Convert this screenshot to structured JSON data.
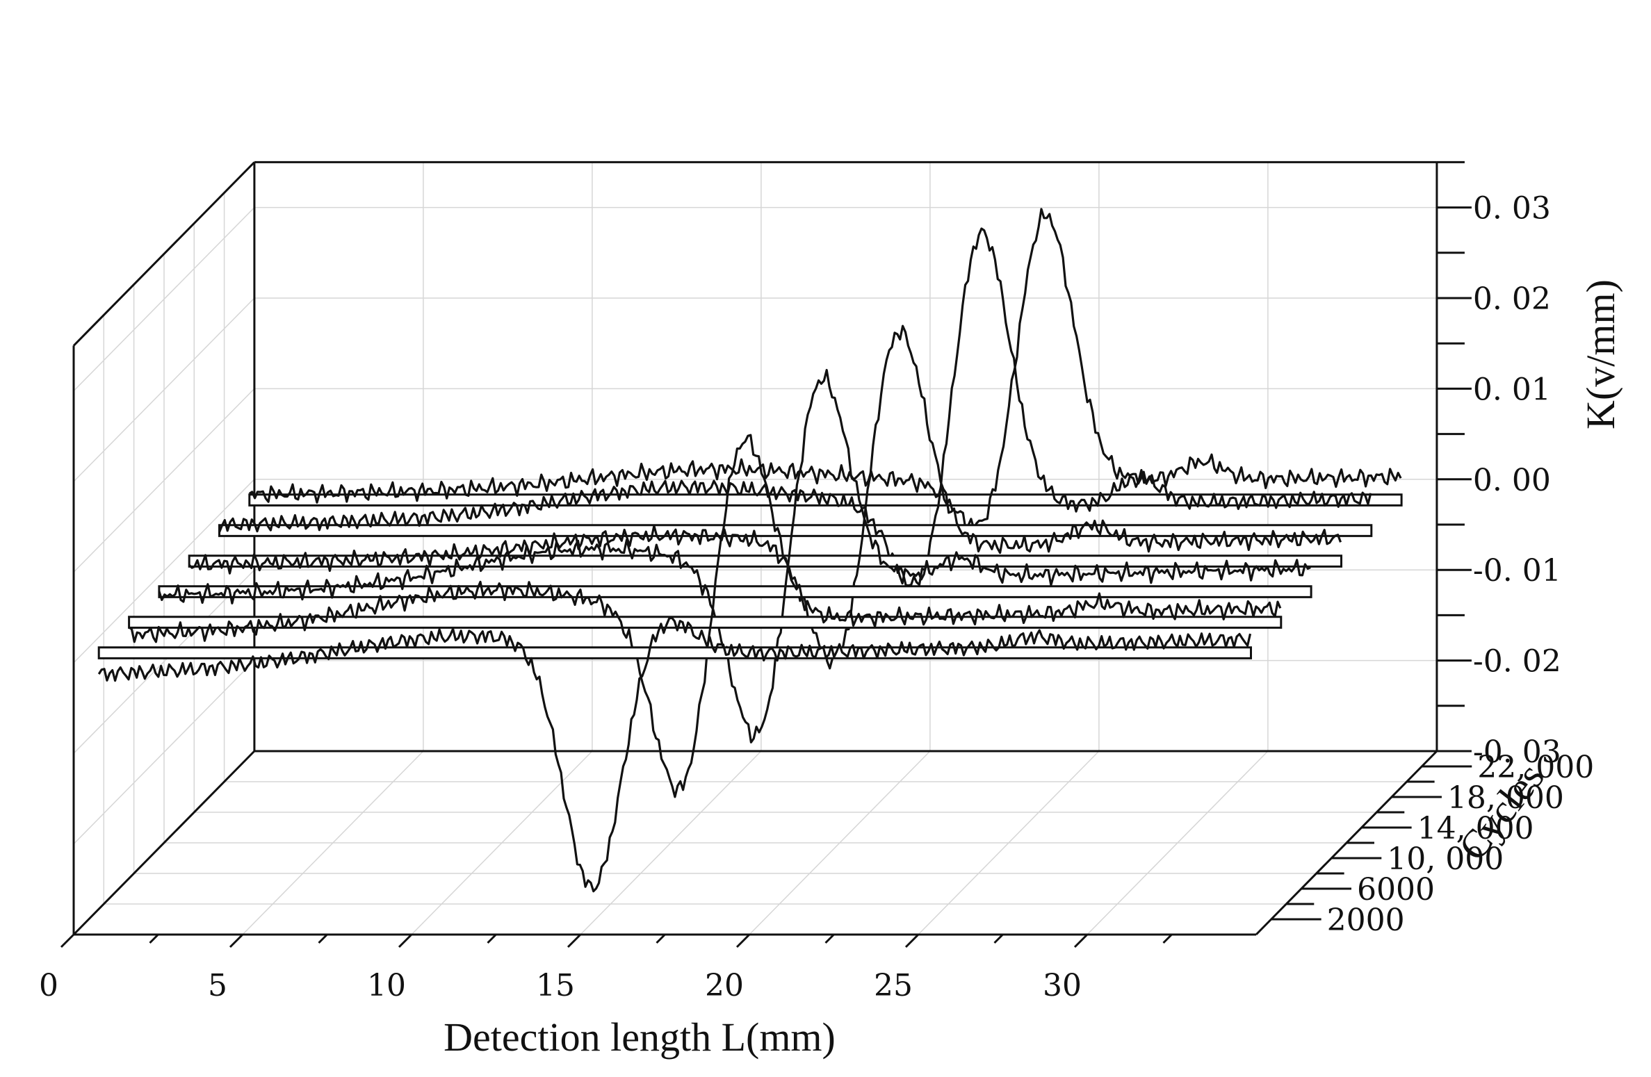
{
  "chart_data": {
    "type": "line",
    "projection": "3d-waterfall",
    "title": "",
    "xlabel": "Detection length L(mm)",
    "ylabel": "Cycles",
    "zlabel": "K(v/mm)",
    "xlim": [
      0,
      35
    ],
    "ylim": [
      0,
      24000
    ],
    "zlim": [
      -0.03,
      0.035
    ],
    "x_ticks": [
      "0",
      "5",
      "10",
      "15",
      "20",
      "25",
      "30"
    ],
    "x_tick_values": [
      0,
      5,
      10,
      15,
      20,
      25,
      30
    ],
    "y_ticks": [
      "2000",
      "6000",
      "10, 000",
      "14, 000",
      "18, 000",
      "22, 000"
    ],
    "y_tick_values": [
      2000,
      6000,
      10000,
      14000,
      18000,
      22000
    ],
    "z_ticks": [
      "-0. 03",
      "-0. 02",
      "-0. 01",
      "0. 00",
      "0. 01",
      "0. 02",
      "0. 03"
    ],
    "z_tick_values": [
      -0.03,
      -0.02,
      -0.01,
      0.0,
      0.01,
      0.02,
      0.03
    ],
    "grid": true,
    "legend": "none",
    "series": [
      {
        "name": "2000",
        "cycles": 2000,
        "base": -0.003,
        "drift": 0.004,
        "hump_center": 11,
        "hump_amp": 0.003,
        "pos_peak_center": 17,
        "pos_peak_amp": 0.004,
        "neg_peak_center": 14.9,
        "neg_peak_amp": -0.027,
        "tail_bump_center": 28,
        "tail_bump_amp": 0.001
      },
      {
        "name": "6000",
        "cycles": 6000,
        "base": -0.002,
        "drift": 0.003,
        "hump_center": 11,
        "hump_amp": 0.004,
        "pos_peak_center": 18.4,
        "pos_peak_amp": 0.022,
        "neg_peak_center": 16.7,
        "neg_peak_amp": -0.022,
        "tail_bump_center": 29,
        "tail_bump_amp": 0.001
      },
      {
        "name": "10,000",
        "cycles": 10000,
        "base": -0.001,
        "drift": 0.003,
        "hump_center": 13,
        "hump_amp": 0.004,
        "pos_peak_center": 19.8,
        "pos_peak_amp": 0.024,
        "neg_peak_center": 18.1,
        "neg_peak_amp": -0.021,
        "tail_bump_center": 24,
        "tail_bump_amp": 0.002
      },
      {
        "name": "14,000",
        "cycles": 14000,
        "base": -0.001,
        "drift": 0.003,
        "hump_center": 14,
        "hump_amp": 0.002,
        "pos_peak_center": 21.2,
        "pos_peak_amp": 0.026,
        "neg_peak_center": 19.6,
        "neg_peak_amp": -0.016,
        "tail_bump_center": 27,
        "tail_bump_amp": 0.002
      },
      {
        "name": "18,000",
        "cycles": 18000,
        "base": 0.0,
        "drift": 0.003,
        "hump_center": 14,
        "hump_amp": 0.003,
        "pos_peak_center": 22.8,
        "pos_peak_amp": 0.032,
        "neg_peak_center": 21.2,
        "neg_peak_amp": -0.012,
        "tail_bump_center": 27.5,
        "tail_bump_amp": 0.003
      },
      {
        "name": "22,000",
        "cycles": 22000,
        "base": 0.0,
        "drift": 0.002,
        "hump_center": 14,
        "hump_amp": 0.002,
        "pos_peak_center": 23.8,
        "pos_peak_amp": 0.031,
        "neg_peak_center": 22.3,
        "neg_peak_amp": -0.008,
        "tail_bump_center": 28.5,
        "tail_bump_amp": 0.002
      }
    ]
  }
}
